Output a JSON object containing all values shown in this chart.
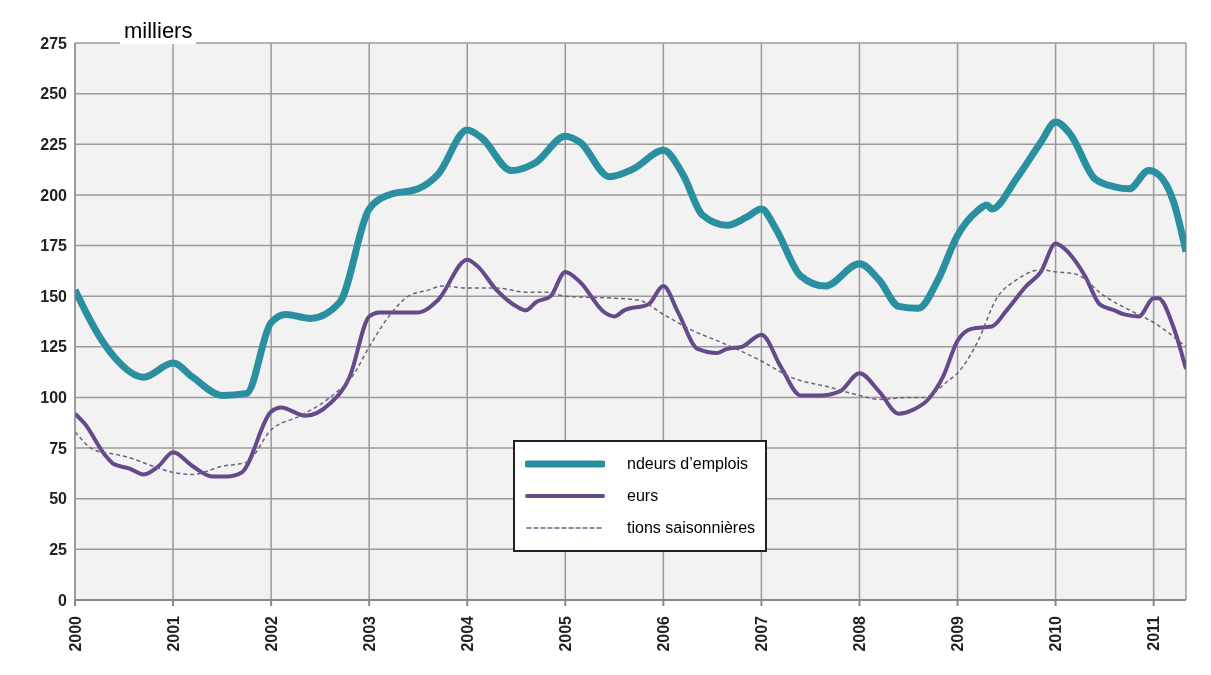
{
  "chart_data": {
    "type": "line",
    "ylabel": "milliers",
    "xlim": [
      2000,
      2011.33
    ],
    "xticks": [
      2000,
      2001,
      2002,
      2003,
      2004,
      2005,
      2006,
      2007,
      2008,
      2009,
      2010,
      2011
    ],
    "ylim": [
      0,
      275
    ],
    "yticks": [
      0,
      25,
      50,
      75,
      100,
      125,
      150,
      175,
      200,
      225,
      250,
      275
    ],
    "grid": true,
    "legend": "bottom",
    "marker": "none",
    "series": [
      {
        "name": "ndeurs d’emplois",
        "color": "#2a8fa0",
        "line_style": "solid",
        "x": [
          2000,
          2000.25,
          2000.4,
          2000.7,
          2001.0,
          2001.2,
          2001.5,
          2001.75,
          2002.0,
          2002.15,
          2002.4,
          2002.7,
          2003.0,
          2003.2,
          2003.5,
          2003.7,
          2004.0,
          2004.15,
          2004.45,
          2004.7,
          2005.0,
          2005.15,
          2005.45,
          2005.7,
          2006.0,
          2006.2,
          2006.4,
          2006.65,
          2006.85,
          2007.0,
          2007.15,
          2007.4,
          2007.65,
          2008.0,
          2008.2,
          2008.4,
          2008.6,
          2008.8,
          2009.0,
          2009.2,
          2009.3,
          2009.35,
          2009.6,
          2009.85,
          2010.0,
          2010.15,
          2010.4,
          2010.6,
          2010.75,
          2010.95,
          2011.05,
          2011.2,
          2011.33
        ],
        "values": [
          153,
          130,
          120,
          110,
          117,
          110,
          101,
          102,
          137,
          141,
          139,
          147,
          193,
          200,
          203,
          210,
          232,
          228,
          212,
          216,
          229,
          226,
          209,
          213,
          222,
          210,
          190,
          185,
          189,
          193,
          183,
          160,
          155,
          166,
          158,
          145,
          144,
          158,
          180,
          192,
          195,
          193,
          208,
          226,
          236,
          230,
          208,
          204,
          203,
          212,
          210,
          197,
          172
        ]
      },
      {
        "name": "eurs",
        "color": "#65498a",
        "line_style": "solid",
        "x": [
          2000,
          2000.1,
          2000.3,
          2000.4,
          2000.55,
          2000.7,
          2000.85,
          2001.0,
          2001.2,
          2001.4,
          2001.55,
          2001.7,
          2002.0,
          2002.1,
          2002.35,
          2002.6,
          2002.8,
          2003.0,
          2003.1,
          2003.3,
          2003.5,
          2003.7,
          2004.0,
          2004.1,
          2004.3,
          2004.5,
          2004.6,
          2004.7,
          2004.85,
          2005.0,
          2005.15,
          2005.4,
          2005.5,
          2005.6,
          2005.85,
          2006.0,
          2006.15,
          2006.35,
          2006.55,
          2006.65,
          2006.8,
          2007.0,
          2007.2,
          2007.4,
          2007.6,
          2007.8,
          2008.0,
          2008.2,
          2008.4,
          2008.55,
          2008.7,
          2008.85,
          2009.0,
          2009.15,
          2009.35,
          2009.5,
          2009.7,
          2009.85,
          2010.0,
          2010.1,
          2010.3,
          2010.45,
          2010.6,
          2010.7,
          2010.85,
          2011.0,
          2011.05,
          2011.2,
          2011.33
        ],
        "values": [
          92,
          87,
          72,
          67,
          65,
          62,
          66,
          73,
          66,
          61,
          61,
          63,
          93,
          95,
          91,
          97,
          110,
          140,
          142,
          142,
          142,
          148,
          168,
          165,
          153,
          145,
          143,
          147,
          150,
          162,
          157,
          142,
          140,
          143,
          146,
          155,
          142,
          124,
          122,
          124,
          125,
          131,
          115,
          101,
          101,
          103,
          112,
          103,
          92,
          94,
          99,
          110,
          128,
          134,
          135,
          143,
          155,
          162,
          176,
          173,
          160,
          146,
          143,
          141,
          140,
          149,
          149,
          135,
          114
        ]
      },
      {
        "name": "tions saisonnières",
        "color": "#6e6080",
        "line_style": "dashed",
        "x": [
          2000,
          2000.2,
          2000.4,
          2000.5,
          2000.8,
          2001.0,
          2001.2,
          2001.5,
          2001.75,
          2002.0,
          2002.3,
          2002.6,
          2002.85,
          2003.0,
          2003.2,
          2003.4,
          2003.6,
          2003.75,
          2004.0,
          2004.3,
          2004.6,
          2004.8,
          2005.0,
          2005.5,
          2005.75,
          2006.0,
          2006.3,
          2006.6,
          2007.0,
          2007.3,
          2007.7,
          2008.0,
          2008.2,
          2008.5,
          2008.65,
          2008.9,
          2009.0,
          2009.2,
          2009.4,
          2009.6,
          2009.85,
          2010.0,
          2010.2,
          2010.5,
          2010.8,
          2011.0,
          2011.33
        ],
        "values": [
          83,
          74,
          72,
          71,
          66,
          63,
          62,
          66,
          68,
          84,
          91,
          100,
          112,
          125,
          140,
          150,
          153,
          155,
          154,
          154,
          152,
          152,
          150,
          149,
          148,
          141,
          133,
          127,
          118,
          110,
          105,
          101,
          99,
          100,
          100,
          108,
          112,
          127,
          149,
          158,
          163,
          162,
          161,
          150,
          142,
          137,
          125
        ]
      }
    ]
  }
}
